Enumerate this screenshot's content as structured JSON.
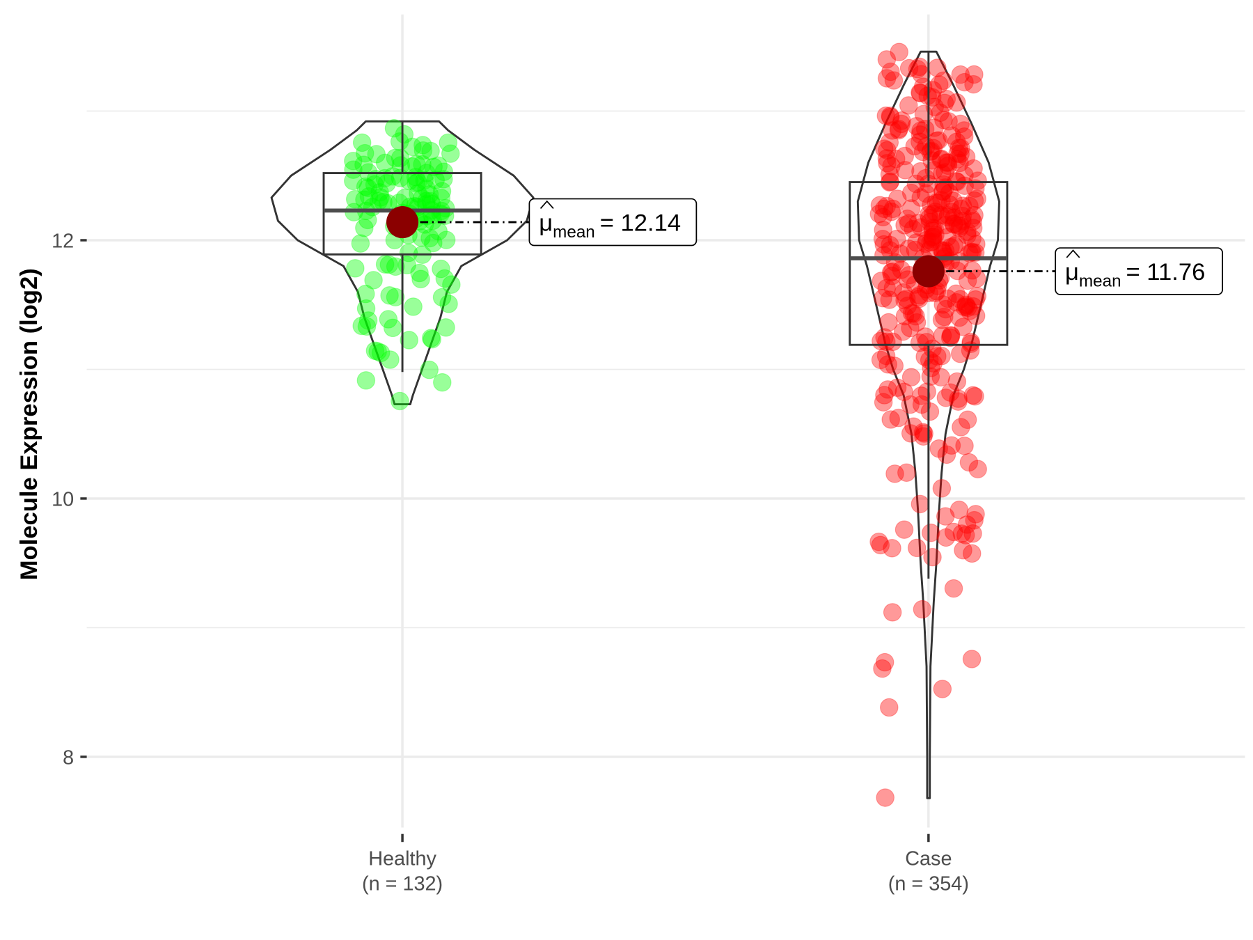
{
  "chart_data": {
    "type": "violin",
    "title": "",
    "xlabel": "",
    "ylabel": "Molecule Expression (log2)",
    "ylim": [
      7.3,
      13.9
    ],
    "yticks": [
      8,
      10,
      12
    ],
    "ytick_labels": [
      "8",
      "10",
      "12"
    ],
    "minor_gridlines": [
      9,
      11,
      13
    ],
    "grid": true,
    "groups": [
      {
        "name": "Healthy",
        "n_label": "(n = 132)",
        "n": 132,
        "color": "#00ff00",
        "mean": 12.14,
        "mean_label_prefix": "μ",
        "mean_label_sub": "mean",
        "mean_label_value": "= 12.14",
        "box": {
          "whisker_low": 10.98,
          "q1": 11.89,
          "median": 12.23,
          "q3": 12.52,
          "whisker_high": 12.92
        },
        "range": [
          10.73,
          12.92
        ],
        "density": [
          [
            10.73,
            0.06
          ],
          [
            10.8,
            0.08
          ],
          [
            11.0,
            0.15
          ],
          [
            11.2,
            0.22
          ],
          [
            11.4,
            0.29
          ],
          [
            11.6,
            0.34
          ],
          [
            11.8,
            0.45
          ],
          [
            12.0,
            0.8
          ],
          [
            12.15,
            0.95
          ],
          [
            12.33,
            1.0
          ],
          [
            12.5,
            0.85
          ],
          [
            12.7,
            0.55
          ],
          [
            12.85,
            0.35
          ],
          [
            12.92,
            0.28
          ]
        ]
      },
      {
        "name": "Case",
        "n_label": "(n = 354)",
        "n": 354,
        "color": "#ff0000",
        "mean": 11.76,
        "mean_label_prefix": "μ",
        "mean_label_sub": "mean",
        "mean_label_value": "= 11.76",
        "box": {
          "whisker_low": 9.38,
          "q1": 11.19,
          "median": 11.86,
          "q3": 12.45,
          "whisker_high": 13.46
        },
        "range": [
          7.68,
          13.46
        ],
        "density": [
          [
            7.68,
            0.01
          ],
          [
            8.0,
            0.01
          ],
          [
            8.7,
            0.015
          ],
          [
            9.2,
            0.04
          ],
          [
            9.5,
            0.06
          ],
          [
            9.9,
            0.08
          ],
          [
            10.2,
            0.1
          ],
          [
            10.5,
            0.13
          ],
          [
            10.8,
            0.19
          ],
          [
            11.0,
            0.27
          ],
          [
            11.2,
            0.33
          ],
          [
            11.5,
            0.4
          ],
          [
            11.8,
            0.47
          ],
          [
            12.0,
            0.53
          ],
          [
            12.3,
            0.54
          ],
          [
            12.6,
            0.46
          ],
          [
            12.9,
            0.33
          ],
          [
            13.2,
            0.19
          ],
          [
            13.46,
            0.06
          ]
        ]
      }
    ],
    "mean_color": "#8b0000"
  }
}
